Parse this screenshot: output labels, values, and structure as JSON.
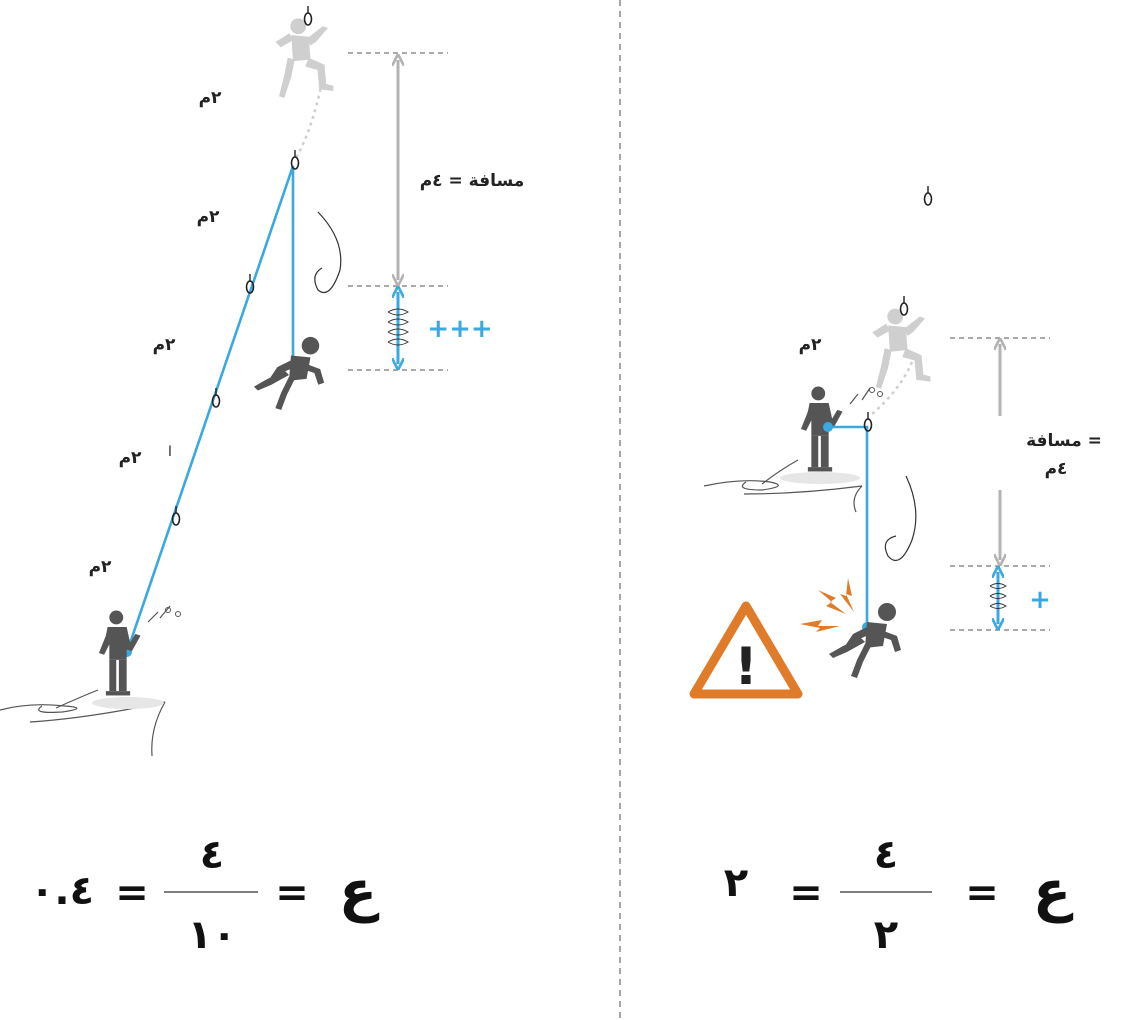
{
  "colors": {
    "rope": "#3aa9e0",
    "climber": "#555555",
    "ghost": "#cfcfcf",
    "arrow_gray": "#b3b3b3",
    "warning": "#e07b2a",
    "divider": "#777777",
    "text": "#222222"
  },
  "left_panel": {
    "segment_labels": [
      "٢م",
      "٢م",
      "٢م",
      "٢م",
      "٢م"
    ],
    "tick_mark": "ا",
    "distance_label": "مسافة = ٤م",
    "stretch_label": "+++",
    "formula": {
      "symbol": "ع",
      "eq1": "=",
      "numerator": "٤",
      "denominator": "١٠",
      "eq2": "=",
      "result": "٠.٤"
    }
  },
  "right_panel": {
    "segment_label": "٢م",
    "distance_label_line1": "مسافة =",
    "distance_label_line2": "٤م",
    "stretch_label": "+",
    "warning_mark": "!",
    "formula": {
      "symbol": "ع",
      "eq1": "=",
      "numerator": "٤",
      "denominator": "٢",
      "eq2": "=",
      "result": "٢"
    }
  }
}
